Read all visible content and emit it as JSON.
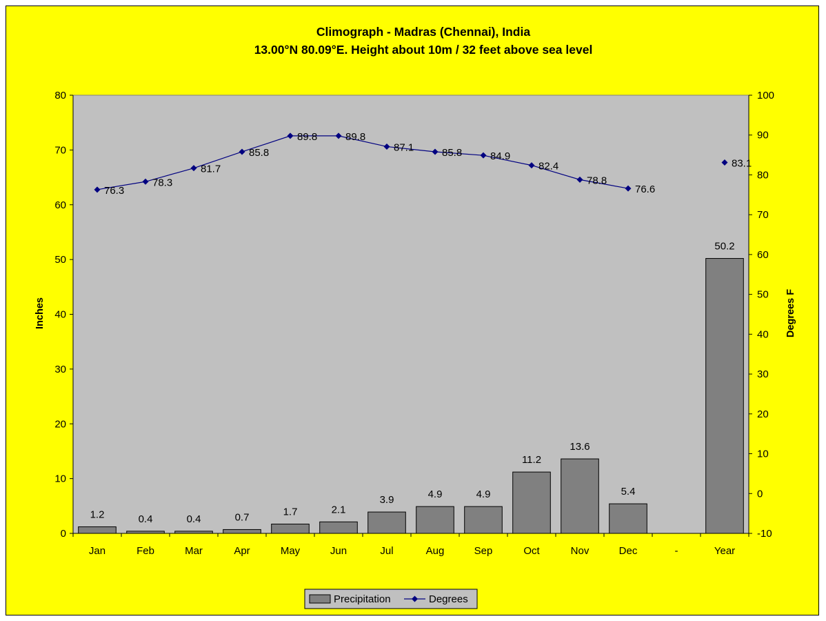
{
  "chart_data": {
    "type": "bar+line",
    "title": "Climograph - Madras (Chennai), India",
    "subtitle": "13.00°N 80.09°E. Height about 10m / 32 feet above sea level",
    "categories": [
      "Jan",
      "Feb",
      "Mar",
      "Apr",
      "May",
      "Jun",
      "Jul",
      "Aug",
      "Sep",
      "Oct",
      "Nov",
      "Dec",
      "-",
      "Year"
    ],
    "series": [
      {
        "name": "Precipitation",
        "type": "bar",
        "axis": "left",
        "color": "#808080",
        "values": [
          1.2,
          0.4,
          0.4,
          0.7,
          1.7,
          2.1,
          3.9,
          4.9,
          4.9,
          11.2,
          13.6,
          5.4,
          null,
          50.2
        ],
        "labels": [
          "1.2",
          "0.4",
          "0.4",
          "0.7",
          "1.7",
          "2.1",
          "3.9",
          "4.9",
          "4.9",
          "11.2",
          "13.6",
          "5.4",
          "",
          "50.2"
        ]
      },
      {
        "name": "Degrees",
        "type": "line",
        "axis": "right",
        "color": "#000080",
        "values": [
          76.3,
          78.3,
          81.7,
          85.8,
          89.8,
          89.8,
          87.1,
          85.8,
          84.9,
          82.4,
          78.8,
          76.6,
          null,
          83.1
        ],
        "labels": [
          "76.3",
          "78.3",
          "81.7",
          "85.8",
          "89.8",
          "89.8",
          "87.1",
          "85.8",
          "84.9",
          "82.4",
          "78.8",
          "76.6",
          "",
          "83.1"
        ]
      }
    ],
    "ylabel": "Inches",
    "y2label": "Degrees F",
    "ylim": [
      0,
      80
    ],
    "y2lim": [
      -10,
      100
    ],
    "yticks": [
      "0",
      "10",
      "20",
      "30",
      "40",
      "50",
      "60",
      "70",
      "80"
    ],
    "y2ticks": [
      "-10",
      "0",
      "10",
      "20",
      "30",
      "40",
      "50",
      "60",
      "70",
      "80",
      "90",
      "100"
    ],
    "grid": false,
    "legend_position": "bottom",
    "background_color": "#ffff00",
    "plot_area_color": "#c0c0c0"
  }
}
